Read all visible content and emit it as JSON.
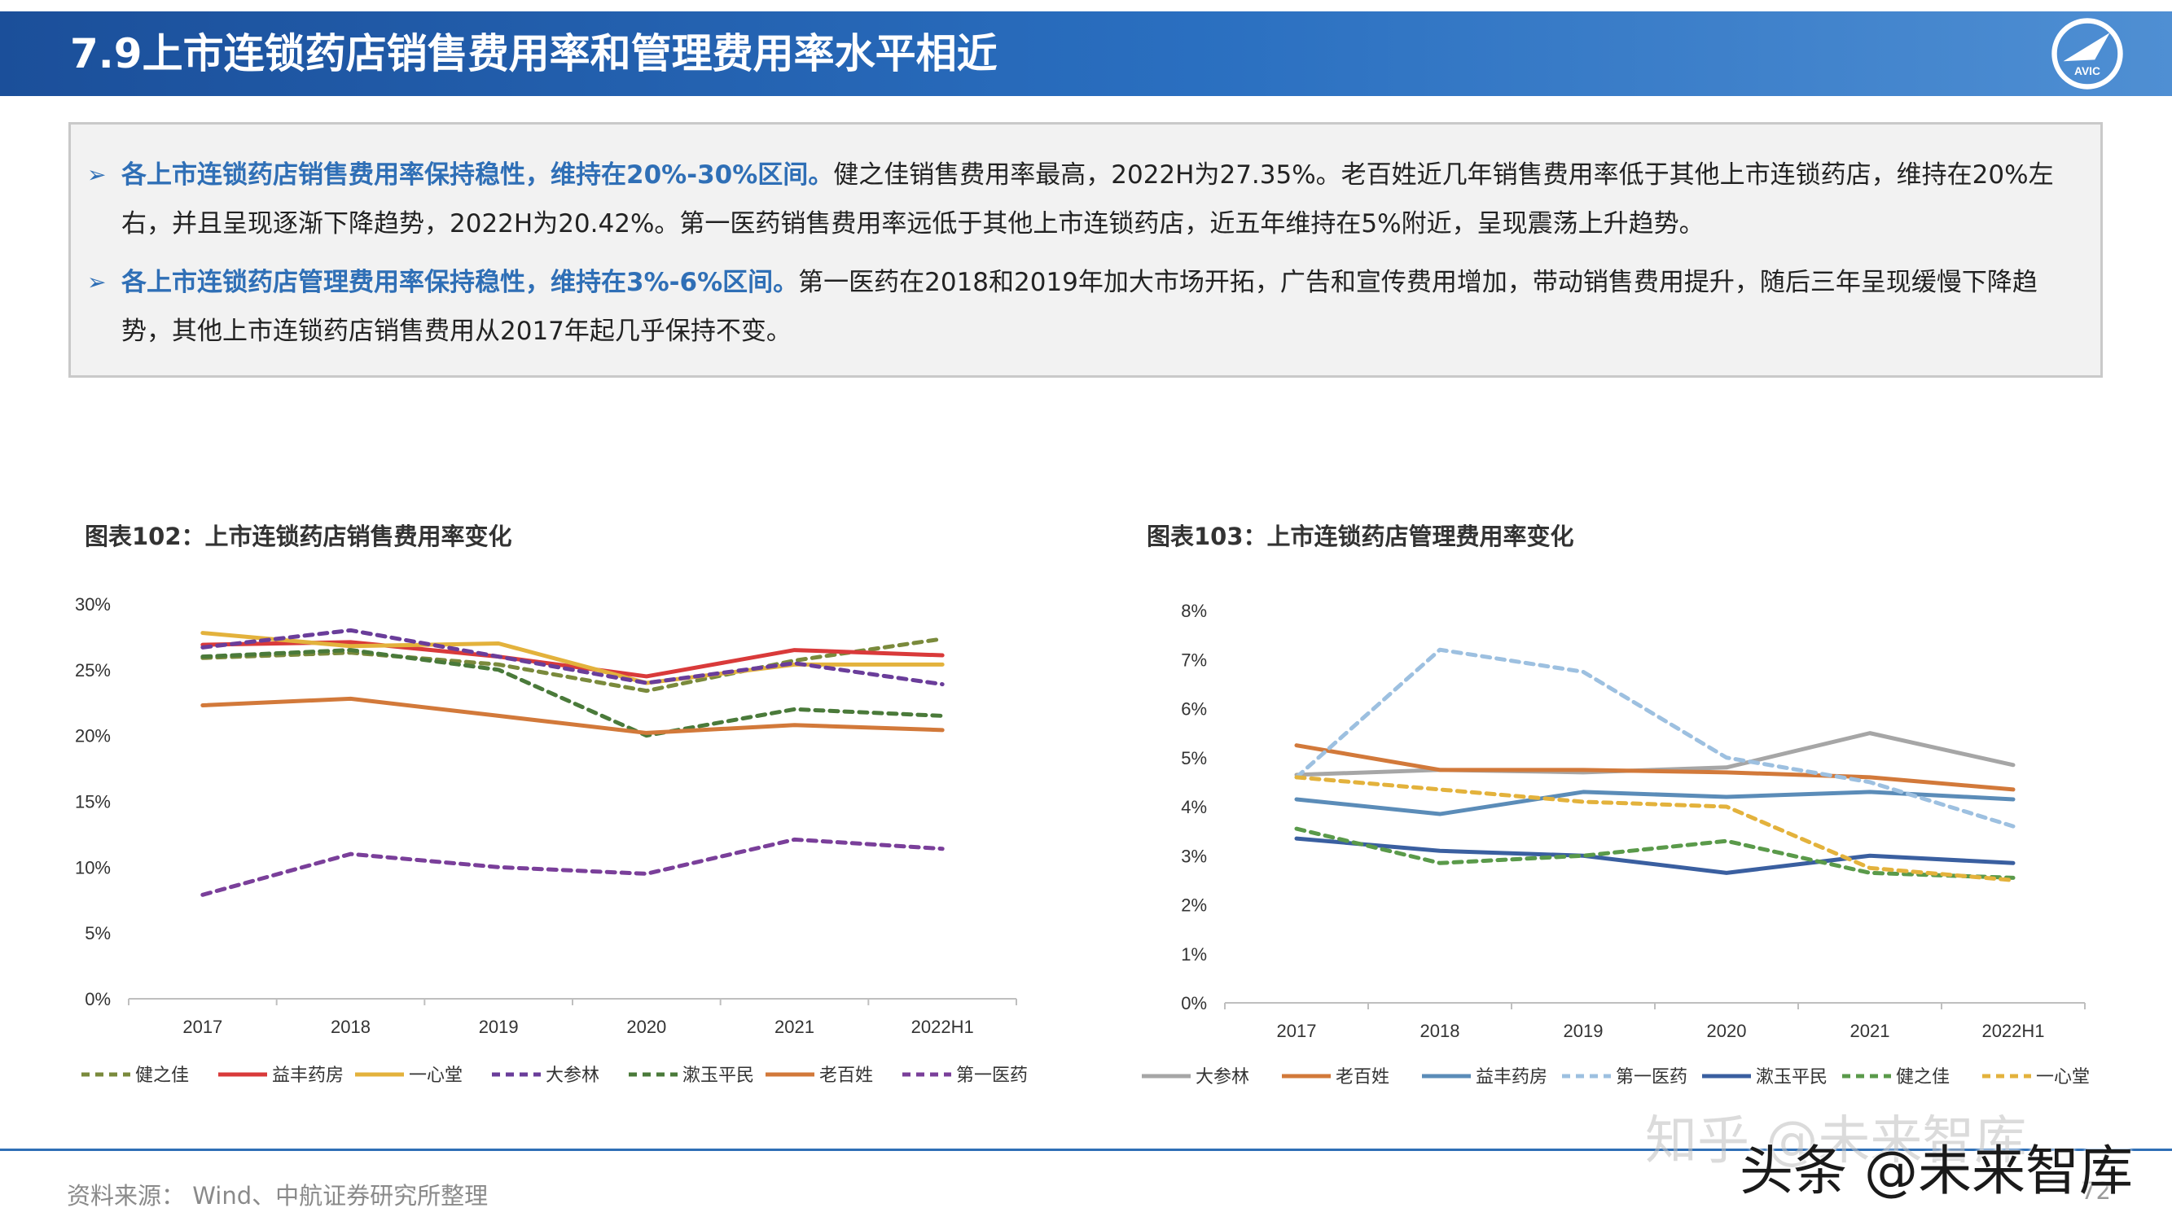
{
  "header": {
    "title": "7.9上市连锁药店销售费用率和管理费用率水平相近",
    "logo_text": "AVIC"
  },
  "summary": {
    "bullets": [
      {
        "marker": "➢",
        "highlight": "各上市连锁药店销售费用率保持稳性，维持在20%-30%区间。",
        "text": "健之佳销售费用率最高，2022H为27.35%。老百姓近几年销售费用率低于其他上市连锁药店，维持在20%左右，并且呈现逐渐下降趋势，2022H为20.42%。第一医药销售费用率远低于其他上市连锁药店，近五年维持在5%附近，呈现震荡上升趋势。"
      },
      {
        "marker": "➢",
        "highlight": "各上市连锁药店管理费用率保持稳性，维持在3%-6%区间。",
        "text": "第一医药在2018和2019年加大市场开拓，广告和宣传费用增加，带动销售费用提升，随后三年呈现缓慢下降趋势，其他上市连锁药店销售费用从2017年起几乎保持不变。"
      }
    ]
  },
  "chart_data": [
    {
      "type": "line",
      "title": "图表102：上市连锁药店销售费用率变化",
      "x": [
        "2017",
        "2018",
        "2019",
        "2020",
        "2021",
        "2022H1"
      ],
      "y_ticks": [
        "0%",
        "5%",
        "10%",
        "15%",
        "20%",
        "25%",
        "30%"
      ],
      "ylim": [
        0,
        30
      ],
      "legend_position": "bottom",
      "series": [
        {
          "name": "健之佳",
          "color": "#7a8a3c",
          "dash": true,
          "values": [
            25.9,
            26.3,
            25.4,
            23.4,
            25.7,
            27.35
          ]
        },
        {
          "name": "益丰药房",
          "color": "#d93a3a",
          "dash": false,
          "values": [
            26.9,
            27.1,
            26.0,
            24.5,
            26.5,
            26.1
          ]
        },
        {
          "name": "一心堂",
          "color": "#e3b23c",
          "dash": false,
          "values": [
            27.8,
            26.8,
            27.0,
            24.0,
            25.4,
            25.4
          ]
        },
        {
          "name": "大参林",
          "color": "#6a3d9a",
          "dash": true,
          "values": [
            26.7,
            28.0,
            26.0,
            24.0,
            25.5,
            23.9
          ]
        },
        {
          "name": "漱玉平民",
          "color": "#4a7a3a",
          "dash": true,
          "values": [
            26.0,
            26.5,
            25.0,
            20.0,
            22.0,
            21.5
          ]
        },
        {
          "name": "老百姓",
          "color": "#d2793a",
          "dash": false,
          "values": [
            22.3,
            22.8,
            21.5,
            20.2,
            20.8,
            20.42
          ]
        },
        {
          "name": "第一医药",
          "color": "#7a3f9a",
          "dash": true,
          "values": [
            7.9,
            11.0,
            10.0,
            9.5,
            12.1,
            11.4
          ]
        }
      ]
    },
    {
      "type": "line",
      "title": "图表103：上市连锁药店管理费用率变化",
      "x": [
        "2017",
        "2018",
        "2019",
        "2020",
        "2021",
        "2022H1"
      ],
      "y_ticks": [
        "0%",
        "1%",
        "2%",
        "3%",
        "4%",
        "5%",
        "6%",
        "7%",
        "8%"
      ],
      "ylim": [
        0,
        8
      ],
      "legend_position": "bottom",
      "series": [
        {
          "name": "大参林",
          "color": "#a6a6a6",
          "dash": false,
          "values": [
            4.65,
            4.75,
            4.7,
            4.8,
            5.5,
            4.85
          ]
        },
        {
          "name": "老百姓",
          "color": "#d2793a",
          "dash": false,
          "values": [
            5.25,
            4.75,
            4.75,
            4.7,
            4.6,
            4.35
          ]
        },
        {
          "name": "益丰药房",
          "color": "#5b8cb8",
          "dash": false,
          "values": [
            4.15,
            3.85,
            4.3,
            4.2,
            4.3,
            4.15
          ]
        },
        {
          "name": "第一医药",
          "color": "#9dc0e0",
          "dash": true,
          "values": [
            4.6,
            7.2,
            6.75,
            5.0,
            4.5,
            3.6
          ]
        },
        {
          "name": "漱玉平民",
          "color": "#3a5fa0",
          "dash": false,
          "values": [
            3.35,
            3.1,
            3.0,
            2.65,
            3.0,
            2.85
          ]
        },
        {
          "name": "健之佳",
          "color": "#5a9a4a",
          "dash": true,
          "values": [
            3.55,
            2.85,
            3.0,
            3.3,
            2.65,
            2.55
          ]
        },
        {
          "name": "一心堂",
          "color": "#e3b23c",
          "dash": true,
          "values": [
            4.6,
            4.35,
            4.1,
            4.0,
            2.75,
            2.5
          ]
        }
      ]
    }
  ],
  "footer": {
    "source": "资料来源：  Wind、中航证券研究所整理",
    "page": "72"
  },
  "watermark": {
    "line1": "知乎 @未来智库",
    "line2": "头条 @未来智库"
  }
}
